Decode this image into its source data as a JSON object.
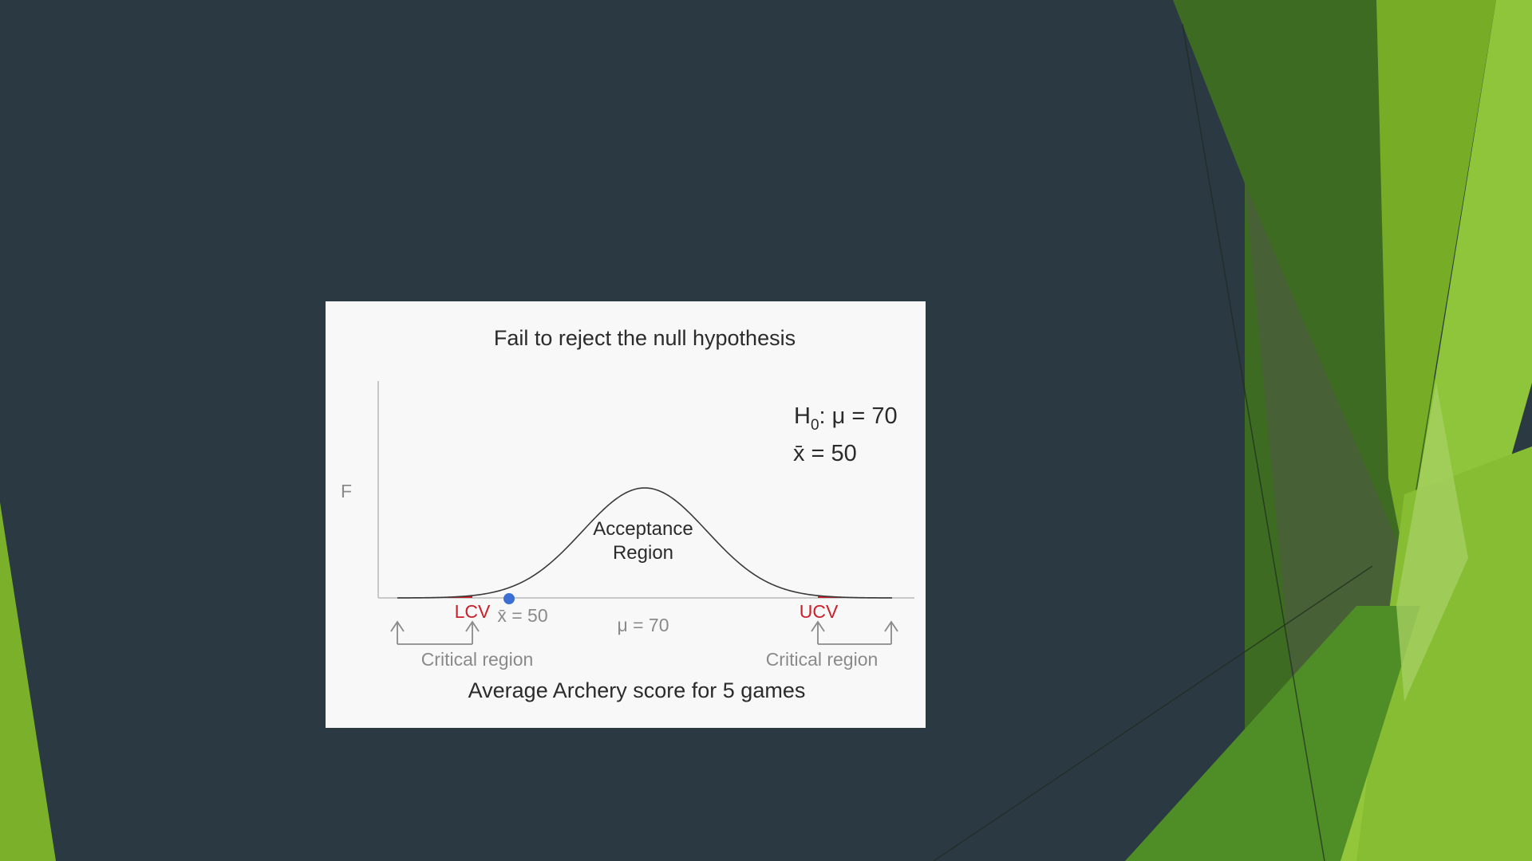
{
  "slide": {
    "background": "#2b3a42",
    "accent_greens": [
      "#3f6e23",
      "#4d8a25",
      "#7bb12a",
      "#95c83a",
      "#a8d05a"
    ]
  },
  "figure": {
    "title": "Fail to reject the null hypothesis",
    "y_axis_label": "F",
    "x_axis_title": "Average Archery score for 5 games",
    "hypothesis": {
      "h0_prefix": "H",
      "h0_sub": "0",
      "h0_rest": ": μ = 70",
      "sample_mean": "x̄ = 50"
    },
    "acceptance_region": [
      "Acceptance",
      "Region"
    ],
    "lcv_label": "LCV",
    "ucv_label": "UCV",
    "sample_mean_label": "x̄ = 50",
    "mu_label": "μ = 70",
    "critical_region_left": "Critical region",
    "critical_region_right": "Critical region",
    "colors": {
      "critical_fill": "#cc1f2a",
      "sample_point": "#3b6fd4",
      "curve": "#3a3a3a"
    }
  }
}
